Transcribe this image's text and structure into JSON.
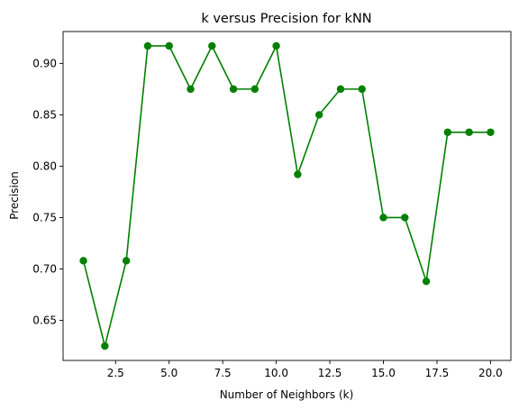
{
  "chart_data": {
    "type": "line",
    "title": "k versus Precision for kNN",
    "xlabel": "Number of Neighbors (k)",
    "ylabel": "Precision",
    "xlim": [
      0.05,
      20.95
    ],
    "ylim": [
      0.611,
      0.931
    ],
    "xticks": [
      2.5,
      5.0,
      7.5,
      10.0,
      12.5,
      15.0,
      17.5,
      20.0
    ],
    "xtick_labels": [
      "2.5",
      "5.0",
      "7.5",
      "10.0",
      "12.5",
      "15.0",
      "17.5",
      "20.0"
    ],
    "yticks": [
      0.65,
      0.7,
      0.75,
      0.8,
      0.85,
      0.9
    ],
    "ytick_labels": [
      "0.65",
      "0.70",
      "0.75",
      "0.80",
      "0.85",
      "0.90"
    ],
    "grid": false,
    "marker": "circle",
    "color": "#008000",
    "series": [
      {
        "x": [
          1,
          2,
          3,
          4,
          5,
          6,
          7,
          8,
          9,
          10,
          11,
          12,
          13,
          14,
          15,
          16,
          17,
          18,
          19,
          20
        ],
        "values": [
          0.708,
          0.625,
          0.708,
          0.917,
          0.917,
          0.875,
          0.917,
          0.875,
          0.875,
          0.917,
          0.792,
          0.85,
          0.875,
          0.875,
          0.75,
          0.75,
          0.688,
          0.833,
          0.833,
          0.833
        ]
      }
    ]
  }
}
